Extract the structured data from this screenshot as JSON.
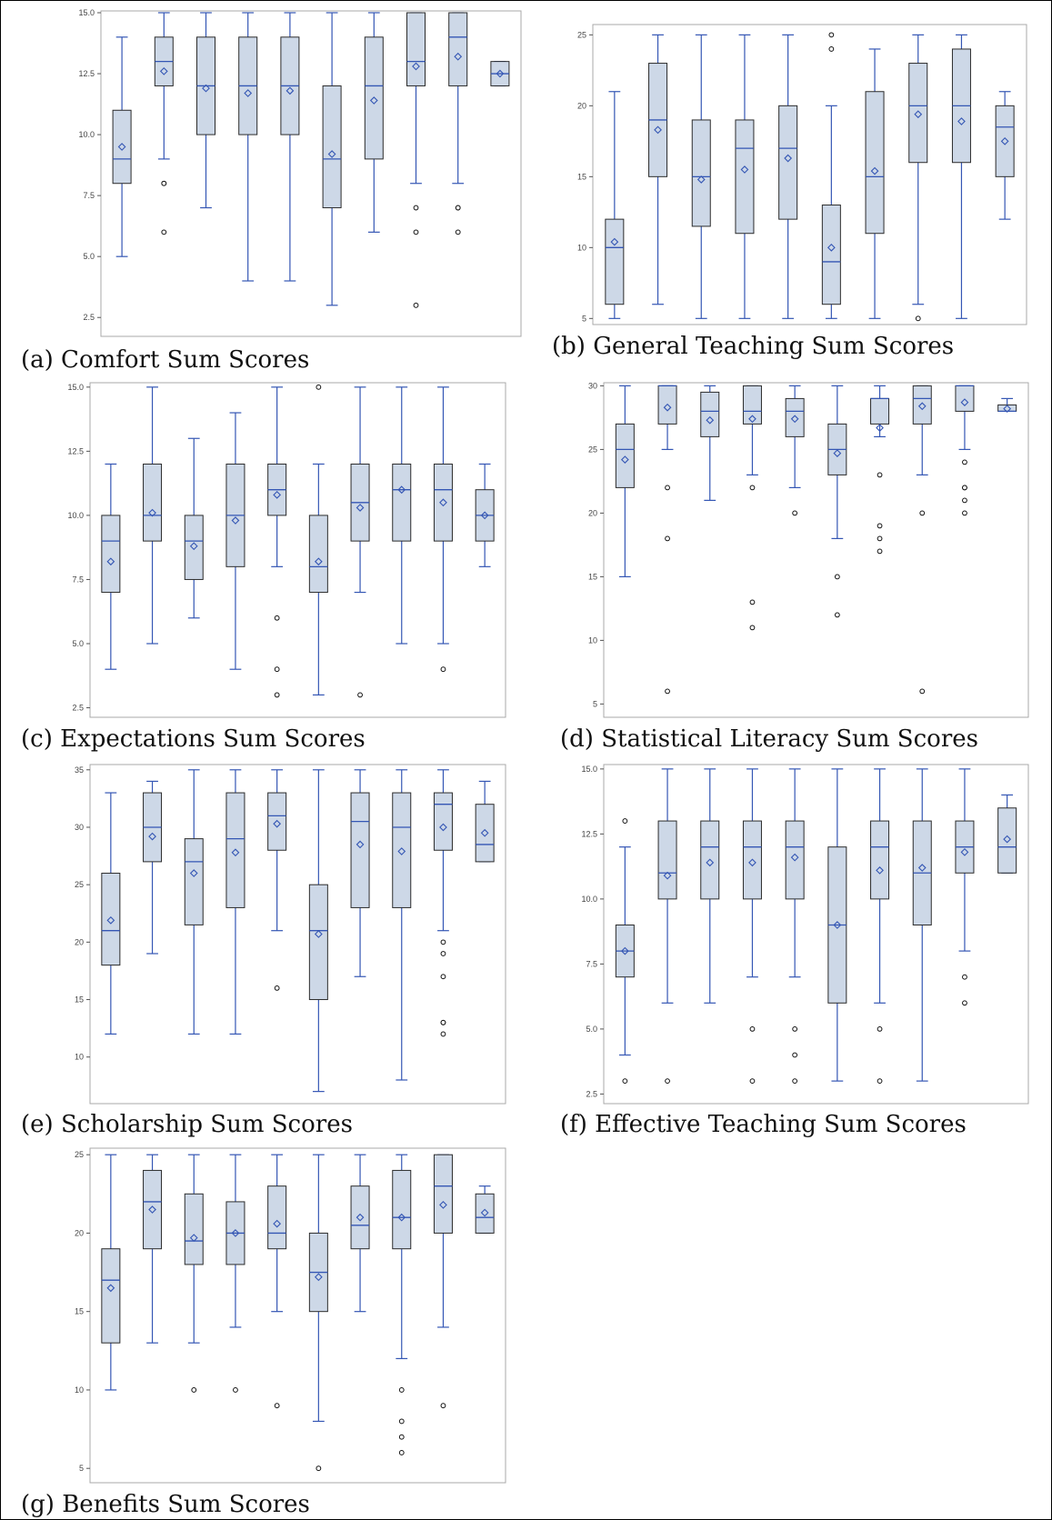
{
  "chart_data": [
    {
      "type": "boxplot",
      "caption": "(a) Comfort Sum Scores",
      "ylim": [
        1.8,
        15.0
      ],
      "yticks": [
        2.5,
        5.0,
        7.5,
        10.0,
        12.5,
        15.0
      ],
      "ytick_labels": [
        "2.5",
        "5.0",
        "7.5",
        "10.0",
        "12.5",
        "15.0"
      ],
      "boxes": [
        {
          "min": 5,
          "q1": 8,
          "median": 9,
          "q3": 11,
          "max": 14,
          "mean": 9.5,
          "outliers": []
        },
        {
          "min": 9,
          "q1": 12,
          "median": 13,
          "q3": 14,
          "max": 15,
          "mean": 12.6,
          "outliers": [
            8,
            8,
            6
          ]
        },
        {
          "min": 7,
          "q1": 10,
          "median": 12,
          "q3": 14,
          "max": 15,
          "mean": 11.9,
          "outliers": []
        },
        {
          "min": 4,
          "q1": 10,
          "median": 12,
          "q3": 14,
          "max": 15,
          "mean": 11.7,
          "outliers": []
        },
        {
          "min": 4,
          "q1": 10,
          "median": 12,
          "q3": 14,
          "max": 15,
          "mean": 11.8,
          "outliers": []
        },
        {
          "min": 3,
          "q1": 7,
          "median": 9,
          "q3": 12,
          "max": 15,
          "mean": 9.2,
          "outliers": []
        },
        {
          "min": 6,
          "q1": 9,
          "median": 12,
          "q3": 14,
          "max": 15,
          "mean": 11.4,
          "outliers": []
        },
        {
          "min": 8,
          "q1": 12,
          "median": 13,
          "q3": 15,
          "max": 15,
          "mean": 12.8,
          "outliers": [
            7,
            6,
            3
          ]
        },
        {
          "min": 8,
          "q1": 12,
          "median": 14,
          "q3": 15,
          "max": 15,
          "mean": 13.2,
          "outliers": [
            7,
            7,
            6
          ]
        },
        {
          "min": 12,
          "q1": 12,
          "median": 12.5,
          "q3": 13,
          "max": 13,
          "mean": 12.5,
          "outliers": []
        }
      ]
    },
    {
      "type": "boxplot",
      "caption": "(b) General Teaching Sum Scores",
      "ylim": [
        4.7,
        25.6
      ],
      "yticks": [
        5,
        10,
        15,
        20,
        25
      ],
      "ytick_labels": [
        "5",
        "10",
        "15",
        "20",
        "25"
      ],
      "boxes": [
        {
          "min": 5,
          "q1": 6,
          "median": 10,
          "q3": 12,
          "max": 21,
          "mean": 10.4,
          "outliers": []
        },
        {
          "min": 6,
          "q1": 15,
          "median": 19,
          "q3": 23,
          "max": 25,
          "mean": 18.3,
          "outliers": []
        },
        {
          "min": 5,
          "q1": 11.5,
          "median": 15,
          "q3": 19,
          "max": 25,
          "mean": 14.8,
          "outliers": []
        },
        {
          "min": 5,
          "q1": 11,
          "median": 17,
          "q3": 19,
          "max": 25,
          "mean": 15.5,
          "outliers": []
        },
        {
          "min": 5,
          "q1": 12,
          "median": 17,
          "q3": 20,
          "max": 25,
          "mean": 16.3,
          "outliers": []
        },
        {
          "min": 5,
          "q1": 6,
          "median": 9,
          "q3": 13,
          "max": 20,
          "mean": 10.0,
          "outliers": [
            25,
            24
          ]
        },
        {
          "min": 5,
          "q1": 11,
          "median": 15,
          "q3": 21,
          "max": 24,
          "mean": 15.4,
          "outliers": []
        },
        {
          "min": 6,
          "q1": 16,
          "median": 20,
          "q3": 23,
          "max": 25,
          "mean": 19.4,
          "outliers": [
            5
          ]
        },
        {
          "min": 5,
          "q1": 16,
          "median": 20,
          "q3": 24,
          "max": 25,
          "mean": 18.9,
          "outliers": []
        },
        {
          "min": 12,
          "q1": 15,
          "median": 18.5,
          "q3": 20,
          "max": 21,
          "mean": 17.5,
          "outliers": []
        }
      ]
    },
    {
      "type": "boxplot",
      "caption": "(c) Expectations Sum Scores",
      "ylim": [
        2.2,
        15.1
      ],
      "yticks": [
        2.5,
        5.0,
        7.5,
        10.0,
        12.5,
        15.0
      ],
      "ytick_labels": [
        "2.5",
        "5.0",
        "7.5",
        "10.0",
        "12.5",
        "15.0"
      ],
      "boxes": [
        {
          "min": 4,
          "q1": 7,
          "median": 9,
          "q3": 10,
          "max": 12,
          "mean": 8.2,
          "outliers": []
        },
        {
          "min": 5,
          "q1": 9,
          "median": 10,
          "q3": 12,
          "max": 15,
          "mean": 10.1,
          "outliers": []
        },
        {
          "min": 6,
          "q1": 7.5,
          "median": 9,
          "q3": 10,
          "max": 13,
          "mean": 8.8,
          "outliers": []
        },
        {
          "min": 4,
          "q1": 8,
          "median": 10,
          "q3": 12,
          "max": 14,
          "mean": 9.8,
          "outliers": []
        },
        {
          "min": 8,
          "q1": 10,
          "median": 11,
          "q3": 12,
          "max": 15,
          "mean": 10.8,
          "outliers": [
            6,
            4,
            3
          ]
        },
        {
          "min": 3,
          "q1": 7,
          "median": 8,
          "q3": 10,
          "max": 12,
          "mean": 8.2,
          "outliers": [
            15
          ]
        },
        {
          "min": 7,
          "q1": 9,
          "median": 10.5,
          "q3": 12,
          "max": 15,
          "mean": 10.3,
          "outliers": [
            3
          ]
        },
        {
          "min": 5,
          "q1": 9,
          "median": 11,
          "q3": 12,
          "max": 15,
          "mean": 11.0,
          "outliers": []
        },
        {
          "min": 5,
          "q1": 9,
          "median": 11,
          "q3": 12,
          "max": 15,
          "mean": 10.5,
          "outliers": [
            4
          ]
        },
        {
          "min": 8,
          "q1": 9,
          "median": 10,
          "q3": 11,
          "max": 12,
          "mean": 10.0,
          "outliers": []
        }
      ]
    },
    {
      "type": "boxplot",
      "caption": "(d) Statistical Literacy Sum Scores",
      "ylim": [
        4.1,
        30.1
      ],
      "yticks": [
        5,
        10,
        15,
        20,
        25,
        30
      ],
      "ytick_labels": [
        "5",
        "10",
        "15",
        "20",
        "25",
        "30"
      ],
      "boxes": [
        {
          "min": 15,
          "q1": 22,
          "median": 25,
          "q3": 27,
          "max": 30,
          "mean": 24.2,
          "outliers": []
        },
        {
          "min": 25,
          "q1": 27,
          "median": 30,
          "q3": 30,
          "max": 30,
          "mean": 28.3,
          "outliers": [
            22,
            18,
            6
          ]
        },
        {
          "min": 21,
          "q1": 26,
          "median": 28,
          "q3": 29.5,
          "max": 30,
          "mean": 27.3,
          "outliers": []
        },
        {
          "min": 23,
          "q1": 27,
          "median": 28,
          "q3": 30,
          "max": 30,
          "mean": 27.4,
          "outliers": [
            22,
            13,
            11
          ]
        },
        {
          "min": 22,
          "q1": 26,
          "median": 28,
          "q3": 29,
          "max": 30,
          "mean": 27.4,
          "outliers": [
            20
          ]
        },
        {
          "min": 18,
          "q1": 23,
          "median": 25,
          "q3": 27,
          "max": 30,
          "mean": 24.7,
          "outliers": [
            15,
            12
          ]
        },
        {
          "min": 26,
          "q1": 27,
          "median": 29,
          "q3": 29,
          "max": 30,
          "mean": 26.7,
          "outliers": [
            23,
            19,
            18,
            17
          ]
        },
        {
          "min": 23,
          "q1": 27,
          "median": 29,
          "q3": 30,
          "max": 30,
          "mean": 28.4,
          "outliers": [
            20,
            6
          ]
        },
        {
          "min": 25,
          "q1": 28,
          "median": 30,
          "q3": 30,
          "max": 30,
          "mean": 28.7,
          "outliers": [
            24,
            22,
            22,
            21,
            20
          ]
        },
        {
          "min": 28,
          "q1": 28,
          "median": 28,
          "q3": 28.5,
          "max": 29,
          "mean": 28.2,
          "outliers": []
        }
      ]
    },
    {
      "type": "boxplot",
      "caption": "(e) Scholarship Sum Scores",
      "ylim": [
        6.1,
        35.3
      ],
      "yticks": [
        10,
        15,
        20,
        25,
        30,
        35
      ],
      "ytick_labels": [
        "10",
        "15",
        "20",
        "25",
        "30",
        "35"
      ],
      "boxes": [
        {
          "min": 12,
          "q1": 18,
          "median": 21,
          "q3": 26,
          "max": 33,
          "mean": 21.9,
          "outliers": []
        },
        {
          "min": 19,
          "q1": 27,
          "median": 30,
          "q3": 33,
          "max": 34,
          "mean": 29.2,
          "outliers": []
        },
        {
          "min": 12,
          "q1": 21.5,
          "median": 27,
          "q3": 29,
          "max": 35,
          "mean": 26.0,
          "outliers": []
        },
        {
          "min": 12,
          "q1": 23,
          "median": 29,
          "q3": 33,
          "max": 35,
          "mean": 27.8,
          "outliers": []
        },
        {
          "min": 21,
          "q1": 28,
          "median": 31,
          "q3": 33,
          "max": 35,
          "mean": 30.3,
          "outliers": [
            16
          ]
        },
        {
          "min": 7,
          "q1": 15,
          "median": 21,
          "q3": 25,
          "max": 35,
          "mean": 20.7,
          "outliers": []
        },
        {
          "min": 17,
          "q1": 23,
          "median": 30.5,
          "q3": 33,
          "max": 35,
          "mean": 28.5,
          "outliers": []
        },
        {
          "min": 8,
          "q1": 23,
          "median": 30,
          "q3": 33,
          "max": 35,
          "mean": 27.9,
          "outliers": []
        },
        {
          "min": 21,
          "q1": 28,
          "median": 32,
          "q3": 33,
          "max": 35,
          "mean": 30.0,
          "outliers": [
            20,
            19,
            17,
            13,
            13,
            12
          ]
        },
        {
          "min": 27,
          "q1": 27,
          "median": 28.5,
          "q3": 32,
          "max": 34,
          "mean": 29.5,
          "outliers": []
        }
      ]
    },
    {
      "type": "boxplot",
      "caption": "(f) Effective Teaching Sum Scores",
      "ylim": [
        2.2,
        15.1
      ],
      "yticks": [
        2.5,
        5.0,
        7.5,
        10.0,
        12.5,
        15.0
      ],
      "ytick_labels": [
        "2.5",
        "5.0",
        "7.5",
        "10.0",
        "12.5",
        "15.0"
      ],
      "boxes": [
        {
          "min": 4,
          "q1": 7,
          "median": 8,
          "q3": 9,
          "max": 12,
          "mean": 8.0,
          "outliers": [
            13,
            3
          ]
        },
        {
          "min": 6,
          "q1": 10,
          "median": 11,
          "q3": 13,
          "max": 15,
          "mean": 10.9,
          "outliers": [
            3
          ]
        },
        {
          "min": 6,
          "q1": 10,
          "median": 12,
          "q3": 13,
          "max": 15,
          "mean": 11.4,
          "outliers": []
        },
        {
          "min": 7,
          "q1": 10,
          "median": 12,
          "q3": 13,
          "max": 15,
          "mean": 11.4,
          "outliers": [
            5,
            3
          ]
        },
        {
          "min": 7,
          "q1": 10,
          "median": 12,
          "q3": 13,
          "max": 15,
          "mean": 11.6,
          "outliers": [
            5,
            4,
            3
          ]
        },
        {
          "min": 3,
          "q1": 6,
          "median": 9,
          "q3": 12,
          "max": 15,
          "mean": 9.0,
          "outliers": []
        },
        {
          "min": 6,
          "q1": 10,
          "median": 12,
          "q3": 13,
          "max": 15,
          "mean": 11.1,
          "outliers": [
            5,
            3
          ]
        },
        {
          "min": 3,
          "q1": 9,
          "median": 11,
          "q3": 13,
          "max": 15,
          "mean": 11.2,
          "outliers": []
        },
        {
          "min": 8,
          "q1": 11,
          "median": 12,
          "q3": 13,
          "max": 15,
          "mean": 11.8,
          "outliers": [
            7,
            6
          ]
        },
        {
          "min": 11,
          "q1": 11,
          "median": 12,
          "q3": 13.5,
          "max": 14,
          "mean": 12.3,
          "outliers": []
        }
      ]
    },
    {
      "type": "boxplot",
      "caption": "(g) Benefits Sum Scores",
      "ylim": [
        4.2,
        25.3
      ],
      "yticks": [
        5,
        10,
        15,
        20,
        25
      ],
      "ytick_labels": [
        "5",
        "10",
        "15",
        "20",
        "25"
      ],
      "boxes": [
        {
          "min": 10,
          "q1": 13,
          "median": 17,
          "q3": 19,
          "max": 25,
          "mean": 16.5,
          "outliers": []
        },
        {
          "min": 13,
          "q1": 19,
          "median": 22,
          "q3": 24,
          "max": 25,
          "mean": 21.5,
          "outliers": []
        },
        {
          "min": 13,
          "q1": 18,
          "median": 19.5,
          "q3": 22.5,
          "max": 25,
          "mean": 19.7,
          "outliers": [
            10
          ]
        },
        {
          "min": 14,
          "q1": 18,
          "median": 20,
          "q3": 22,
          "max": 25,
          "mean": 20.0,
          "outliers": [
            10
          ]
        },
        {
          "min": 15,
          "q1": 19,
          "median": 20,
          "q3": 23,
          "max": 25,
          "mean": 20.6,
          "outliers": [
            9
          ]
        },
        {
          "min": 8,
          "q1": 15,
          "median": 17.5,
          "q3": 20,
          "max": 25,
          "mean": 17.2,
          "outliers": [
            5
          ]
        },
        {
          "min": 15,
          "q1": 19,
          "median": 20.5,
          "q3": 23,
          "max": 25,
          "mean": 21.0,
          "outliers": []
        },
        {
          "min": 12,
          "q1": 19,
          "median": 21,
          "q3": 24,
          "max": 25,
          "mean": 21.0,
          "outliers": [
            10,
            8,
            7,
            6
          ]
        },
        {
          "min": 14,
          "q1": 20,
          "median": 23,
          "q3": 25,
          "max": 25,
          "mean": 21.8,
          "outliers": [
            9
          ]
        },
        {
          "min": 20,
          "q1": 20,
          "median": 21,
          "q3": 22.5,
          "max": 23,
          "mean": 21.3,
          "outliers": []
        }
      ]
    }
  ],
  "colors": {
    "box_fill": "#cdd8e7",
    "box_edge": "#2b2b2b",
    "whisker": "#3456b4",
    "median": "#3456b4",
    "mean_marker": "#3456b4",
    "outlier": "#111111",
    "frame": "#a9a9a9",
    "tick_label": "#444444"
  }
}
